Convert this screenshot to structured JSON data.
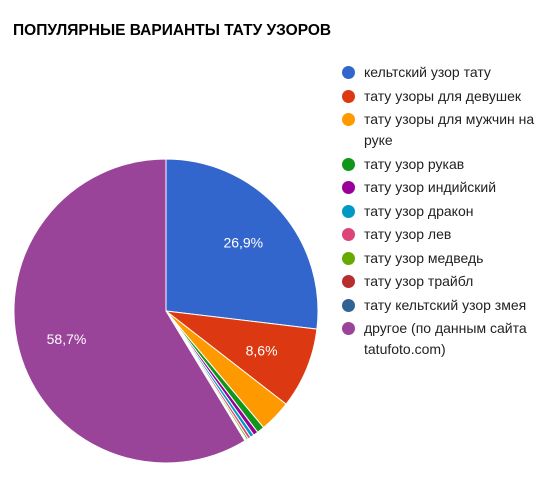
{
  "chart_data": {
    "type": "pie",
    "title": "ПОПУЛЯРНЫЕ ВАРИАНТЫ ТАТУ УЗОРОВ",
    "legend_position": "right",
    "slices": [
      {
        "label": "кельтский узор тату",
        "value": 26.9,
        "data_label": "26,9%",
        "color": "#3366cc"
      },
      {
        "label": "тату узоры для девушек",
        "value": 8.6,
        "data_label": "8,6%",
        "color": "#dc3912"
      },
      {
        "label": "тату узоры для мужчин на руке",
        "value": 3.4,
        "data_label": "",
        "color": "#ff9900"
      },
      {
        "label": "тату узор рукав",
        "value": 0.8,
        "data_label": "",
        "color": "#109618"
      },
      {
        "label": "тату узор индийский",
        "value": 0.5,
        "data_label": "",
        "color": "#990099"
      },
      {
        "label": "тату узор дракон",
        "value": 0.4,
        "data_label": "",
        "color": "#0099c6"
      },
      {
        "label": "тату узор лев",
        "value": 0.3,
        "data_label": "",
        "color": "#dd4477"
      },
      {
        "label": "тату узор медведь",
        "value": 0.2,
        "data_label": "",
        "color": "#66aa00"
      },
      {
        "label": "тату узор трайбл",
        "value": 0.1,
        "data_label": "",
        "color": "#b82e2e"
      },
      {
        "label": "тату кельтский узор змея",
        "value": 0.1,
        "data_label": "",
        "color": "#316395"
      },
      {
        "label": "другое (по данным сайта tatufoto.com)",
        "value": 58.7,
        "data_label": "58,7%",
        "color": "#994499"
      }
    ]
  }
}
